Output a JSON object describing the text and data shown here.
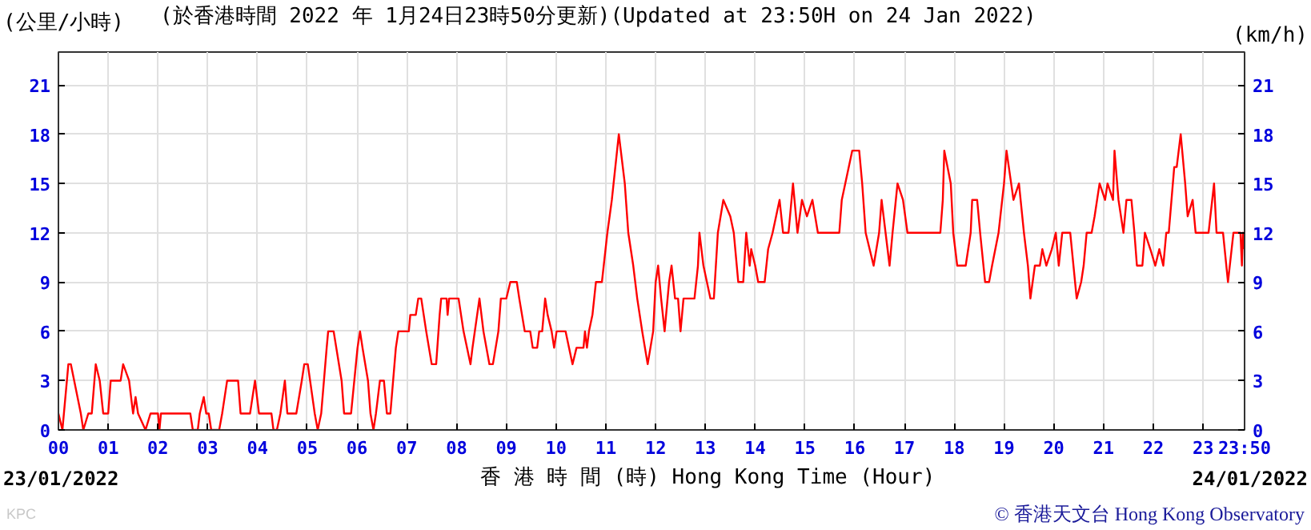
{
  "chart_data": {
    "type": "line",
    "title": "(於香港時間 2022 年 1月24日23時50分更新)(Updated at 23:50H on 24 Jan 2022)",
    "ylabel": "(公里/小時)",
    "y2label": "(km/h)",
    "xlabel": "香 港 時 間 (時)  Hong Kong Time (Hour)",
    "annotations": [
      "23/01/2022",
      "24/01/2022",
      "© 香港天文台 Hong Kong Observatory",
      "KPC"
    ],
    "x": [
      0,
      0.08,
      0.2,
      0.25,
      0.45,
      0.5,
      0.6,
      0.67,
      0.75,
      0.83,
      0.9,
      1.0,
      1.05,
      1.25,
      1.3,
      1.42,
      1.5,
      1.55,
      1.6,
      1.75,
      1.85,
      2.0,
      2.03,
      2.06,
      2.65,
      2.7,
      2.8,
      2.84,
      2.92,
      2.97,
      3.02,
      3.07,
      3.23,
      3.29,
      3.39,
      3.61,
      3.66,
      3.85,
      3.95,
      4.03,
      4.28,
      4.32,
      4.39,
      4.46,
      4.55,
      4.6,
      4.78,
      4.89,
      4.94,
      5.01,
      5.15,
      5.21,
      5.28,
      5.39,
      5.42,
      5.53,
      5.69,
      5.74,
      5.88,
      6.01,
      6.06,
      6.11,
      6.22,
      6.27,
      6.33,
      6.38,
      6.46,
      6.54,
      6.6,
      6.67,
      6.78,
      6.83,
      7.04,
      7.07,
      7.18,
      7.23,
      7.29,
      7.39,
      7.5,
      7.59,
      7.66,
      7.69,
      7.8,
      7.82,
      7.85,
      8.04,
      8.14,
      8.28,
      8.32,
      8.46,
      8.54,
      8.66,
      8.73,
      8.84,
      8.89,
      9.0,
      9.08,
      9.21,
      9.26,
      9.37,
      9.48,
      9.53,
      9.62,
      9.66,
      9.72,
      9.78,
      9.83,
      9.91,
      9.96,
      10.01,
      10.19,
      10.26,
      10.33,
      10.41,
      10.55,
      10.58,
      10.62,
      10.66,
      10.73,
      10.8,
      10.92,
      11.03,
      11.12,
      11.26,
      11.38,
      11.45,
      11.5,
      11.55,
      11.63,
      11.73,
      11.84,
      11.95,
      12.0,
      12.05,
      12.11,
      12.18,
      12.27,
      12.32,
      12.39,
      12.45,
      12.5,
      12.56,
      12.78,
      12.85,
      12.88,
      12.96,
      13.1,
      13.17,
      13.25,
      13.36,
      13.5,
      13.57,
      13.63,
      13.66,
      13.76,
      13.82,
      13.89,
      13.92,
      14.0,
      14.06,
      14.19,
      14.26,
      14.35,
      14.49,
      14.56,
      14.67,
      14.76,
      14.85,
      14.94,
      15.04,
      15.15,
      15.26,
      15.69,
      15.74,
      15.95,
      16.09,
      16.15,
      16.22,
      16.38,
      16.49,
      16.54,
      16.62,
      16.7,
      16.76,
      16.86,
      16.97,
      17.06,
      17.72,
      17.77,
      17.8,
      17.93,
      17.98,
      18.06,
      18.23,
      18.33,
      18.36,
      18.46,
      18.52,
      18.62,
      18.7,
      18.76,
      18.89,
      19.0,
      19.05,
      19.19,
      19.3,
      19.4,
      19.48,
      19.53,
      19.62,
      19.72,
      19.77,
      19.85,
      19.96,
      20.04,
      20.1,
      20.17,
      20.33,
      20.46,
      20.55,
      20.6,
      20.66,
      20.76,
      20.82,
      20.92,
      21.03,
      21.08,
      21.19,
      21.22,
      21.3,
      21.4,
      21.46,
      21.56,
      21.62,
      21.67,
      21.78,
      21.83,
      21.94,
      22.04,
      22.12,
      22.2,
      22.26,
      22.31,
      22.42,
      22.47,
      22.55,
      22.64,
      22.69,
      22.79,
      22.85,
      23.11,
      23.22,
      23.27,
      23.4,
      23.5,
      23.61,
      23.75,
      23.78,
      23.8,
      23.83
    ],
    "series": [
      {
        "color": "#ff0000",
        "values": [
          1,
          0,
          4,
          4,
          1,
          0,
          1,
          1,
          4,
          3,
          1,
          1,
          3,
          3,
          4,
          3,
          1,
          2,
          1,
          0,
          1,
          1,
          0,
          1,
          1,
          0,
          0,
          1,
          2,
          1,
          1,
          0,
          0,
          1,
          3,
          3,
          1,
          1,
          3,
          1,
          1,
          0,
          0,
          1,
          3,
          1,
          1,
          3,
          4,
          4,
          1,
          0,
          1,
          5,
          6,
          6,
          3,
          1,
          1,
          5,
          6,
          5,
          3,
          1,
          0,
          1,
          3,
          3,
          1,
          1,
          5,
          6,
          6,
          7,
          7,
          8,
          8,
          6,
          4,
          4,
          7,
          8,
          8,
          7,
          8,
          8,
          6,
          4,
          5,
          8,
          6,
          4,
          4,
          6,
          8,
          8,
          9,
          9,
          8,
          6,
          6,
          5,
          5,
          6,
          6,
          8,
          7,
          6,
          5,
          6,
          6,
          5,
          4,
          5,
          5,
          6,
          5,
          6,
          7,
          9,
          9,
          12,
          14,
          18,
          15,
          12,
          11,
          10,
          8,
          6,
          4,
          6,
          9,
          10,
          8,
          6,
          9,
          10,
          8,
          8,
          6,
          8,
          8,
          10,
          12,
          10,
          8,
          8,
          12,
          14,
          13,
          12,
          10,
          9,
          9,
          12,
          10,
          11,
          10,
          9,
          9,
          11,
          12,
          14,
          12,
          12,
          15,
          12,
          14,
          13,
          14,
          12,
          12,
          14,
          17,
          17,
          15,
          12,
          10,
          12,
          14,
          12,
          10,
          12,
          15,
          14,
          12,
          12,
          14,
          17,
          15,
          12,
          10,
          10,
          12,
          14,
          14,
          12,
          9,
          9,
          10,
          12,
          15,
          17,
          14,
          15,
          12,
          10,
          8,
          10,
          10,
          11,
          10,
          11,
          12,
          10,
          12,
          12,
          8,
          9,
          10,
          12,
          12,
          13,
          15,
          14,
          15,
          14,
          17,
          14,
          12,
          14,
          14,
          12,
          10,
          10,
          12,
          11,
          10,
          11,
          10,
          12,
          12,
          16,
          16,
          18,
          15,
          13,
          14,
          12,
          12,
          15,
          12,
          12,
          9,
          12,
          12,
          10,
          12,
          11
        ]
      }
    ],
    "xlim": [
      0,
      23.8333
    ],
    "xticks": [
      {
        "value": 0,
        "label": "00"
      },
      {
        "value": 1,
        "label": "01"
      },
      {
        "value": 2,
        "label": "02"
      },
      {
        "value": 3,
        "label": "03"
      },
      {
        "value": 4,
        "label": "04"
      },
      {
        "value": 5,
        "label": "05"
      },
      {
        "value": 6,
        "label": "06"
      },
      {
        "value": 7,
        "label": "07"
      },
      {
        "value": 8,
        "label": "08"
      },
      {
        "value": 9,
        "label": "09"
      },
      {
        "value": 10,
        "label": "10"
      },
      {
        "value": 11,
        "label": "11"
      },
      {
        "value": 12,
        "label": "12"
      },
      {
        "value": 13,
        "label": "13"
      },
      {
        "value": 14,
        "label": "14"
      },
      {
        "value": 15,
        "label": "15"
      },
      {
        "value": 16,
        "label": "16"
      },
      {
        "value": 17,
        "label": "17"
      },
      {
        "value": 18,
        "label": "18"
      },
      {
        "value": 19,
        "label": "19"
      },
      {
        "value": 20,
        "label": "20"
      },
      {
        "value": 21,
        "label": "21"
      },
      {
        "value": 22,
        "label": "22"
      },
      {
        "value": 23,
        "label": "23"
      },
      {
        "value": 23.8333,
        "label": "23:50"
      }
    ],
    "ylim": [
      0,
      23
    ],
    "yticks": [
      0,
      3,
      6,
      9,
      12,
      15,
      18,
      21
    ],
    "y2lim": [
      0,
      23
    ],
    "y2ticks": [
      0,
      3,
      6,
      9,
      12,
      15,
      18,
      21
    ],
    "grid": true
  }
}
